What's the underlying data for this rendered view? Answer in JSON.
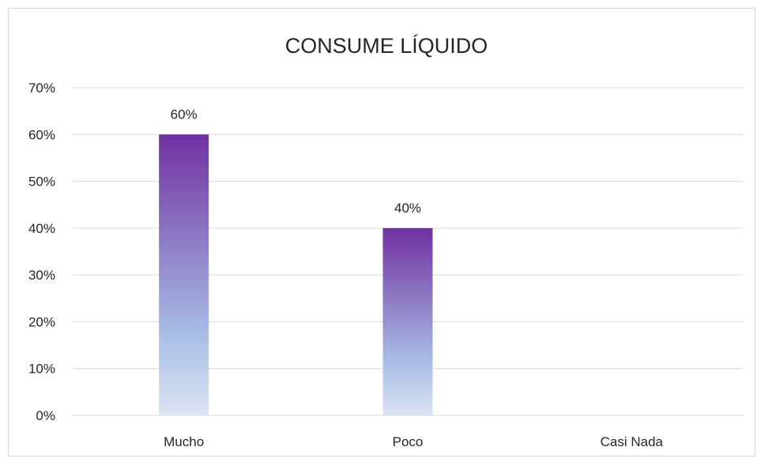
{
  "chart_data": {
    "type": "bar",
    "title": "CONSUME LÍQUIDO",
    "xlabel": "",
    "ylabel": "",
    "categories": [
      "Mucho",
      "Poco",
      "Casi Nada"
    ],
    "values": [
      0.6,
      0.4,
      0
    ],
    "data_labels": [
      "60%",
      "40%",
      null
    ],
    "ylim": [
      0,
      0.7
    ],
    "yticks": [
      0,
      0.1,
      0.2,
      0.3,
      0.4,
      0.5,
      0.6,
      0.7
    ],
    "ytick_labels": [
      "0%",
      "10%",
      "20%",
      "30%",
      "40%",
      "50%",
      "60%",
      "70%"
    ],
    "grid": true,
    "legend": "none",
    "colors": {
      "bar_top": "#7030a0",
      "bar_bottom": "#dbe3f4",
      "bar_mid": "#a9bfe6"
    }
  }
}
